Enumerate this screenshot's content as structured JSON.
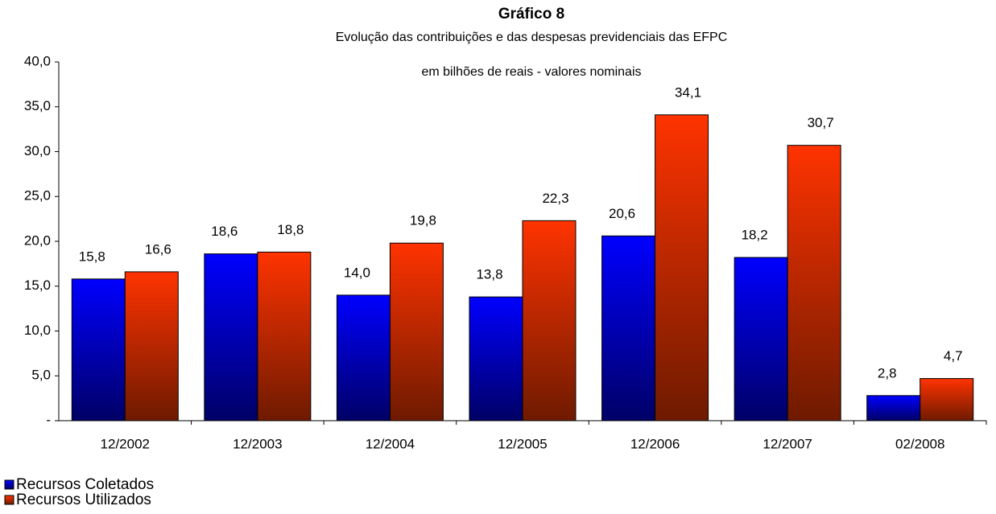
{
  "chart_data": {
    "type": "bar",
    "title": "Gráfico 8",
    "subtitle": "Evolução das contribuições e das despesas previdenciais das EFPC",
    "annotation": "em bilhões de reais - valores nominais",
    "categories": [
      "12/2002",
      "12/2003",
      "12/2004",
      "12/2005",
      "12/2006",
      "12/2007",
      "02/2008"
    ],
    "series": [
      {
        "name": "Recursos Coletados",
        "color": "#0000ff",
        "values": [
          15.8,
          18.6,
          14.0,
          13.8,
          20.6,
          18.2,
          2.8
        ],
        "value_labels": [
          "15,8",
          "18,6",
          "14,0",
          "13,8",
          "20,6",
          "18,2",
          "2,8"
        ]
      },
      {
        "name": "Recursos Utilizados",
        "color": "#ff3300",
        "values": [
          16.6,
          18.8,
          19.8,
          22.3,
          34.1,
          30.7,
          4.7
        ],
        "value_labels": [
          "16,6",
          "18,8",
          "19,8",
          "22,3",
          "34,1",
          "30,7",
          "4,7"
        ]
      }
    ],
    "ylim": [
      0,
      40
    ],
    "yticks": [
      {
        "value": 0,
        "label": "-"
      },
      {
        "value": 5,
        "label": "5,0"
      },
      {
        "value": 10,
        "label": "10,0"
      },
      {
        "value": 15,
        "label": "15,0"
      },
      {
        "value": 20,
        "label": "20,0"
      },
      {
        "value": 25,
        "label": "25,0"
      },
      {
        "value": 30,
        "label": "30,0"
      },
      {
        "value": 35,
        "label": "35,0"
      },
      {
        "value": 40,
        "label": "40,0"
      }
    ],
    "grid": false,
    "legend": "bottom-left"
  }
}
